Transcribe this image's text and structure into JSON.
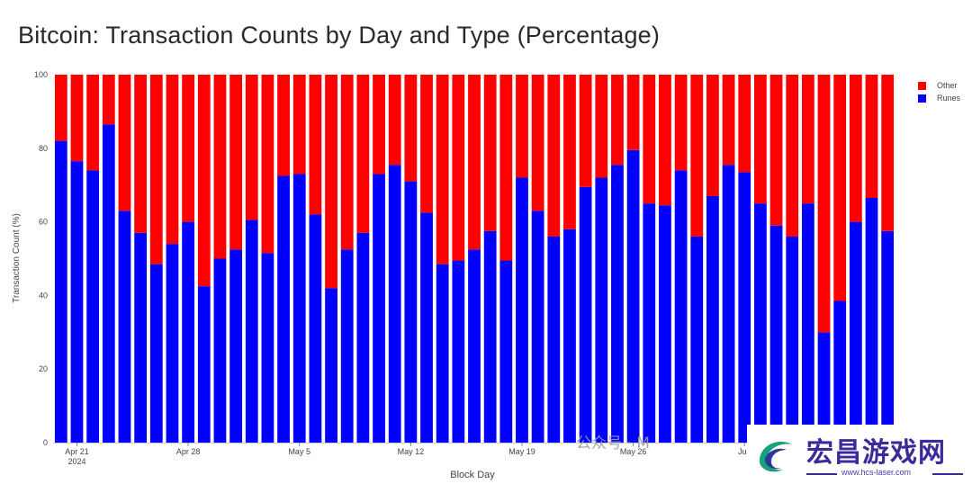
{
  "title": "Bitcoin: Transaction Counts by Day and Type (Percentage)",
  "legend": {
    "items": [
      {
        "label": "Other",
        "color": "#ff0000"
      },
      {
        "label": "Runes",
        "color": "#0000ff"
      }
    ]
  },
  "watermark": {
    "wechat_text": "公众号 · M",
    "brand_cn": "宏昌游戏网",
    "brand_url": "www.hcs-laser.com"
  },
  "chart_data": {
    "type": "bar",
    "stacked": true,
    "title": "Bitcoin: Transaction Counts by Day and Type (Percentage)",
    "xlabel": "Block Day",
    "ylabel": "Transaction Count (%)",
    "ylim": [
      0,
      100
    ],
    "yticks": [
      "0",
      "20",
      "40",
      "60",
      "80",
      "100"
    ],
    "xticks": [
      {
        "label": "Apr 21",
        "sublabel": "2024",
        "index": 1
      },
      {
        "label": "Apr 28",
        "index": 8
      },
      {
        "label": "May 5",
        "index": 15
      },
      {
        "label": "May 12",
        "index": 22
      },
      {
        "label": "May 19",
        "index": 29
      },
      {
        "label": "May 26",
        "index": 36
      },
      {
        "label": "Jun",
        "index": 43
      }
    ],
    "grid": false,
    "legend_position": "top-right",
    "series": [
      {
        "name": "Runes",
        "color": "#0000ff",
        "values": [
          82,
          76.5,
          74,
          86.5,
          63,
          57,
          48.5,
          54,
          60,
          42.5,
          50,
          52.5,
          60.5,
          51.5,
          72.5,
          73,
          62,
          42,
          52.5,
          57,
          73,
          75.5,
          71,
          62.5,
          48.5,
          49.5,
          52.5,
          57.5,
          49.5,
          72,
          63,
          56,
          58,
          69.5,
          72,
          75.5,
          79.5,
          65,
          64.5,
          74,
          56,
          67,
          75.5,
          73.5,
          65,
          59,
          56,
          65,
          30,
          38.5,
          60,
          66.5,
          57.5
        ]
      },
      {
        "name": "Other",
        "color": "#ff0000",
        "values": [
          18,
          23.5,
          26,
          13.5,
          37,
          43,
          51.5,
          46,
          40,
          57.5,
          50,
          47.5,
          39.5,
          48.5,
          27.5,
          27,
          38,
          58,
          47.5,
          43,
          27,
          24.5,
          29,
          37.5,
          51.5,
          50.5,
          47.5,
          42.5,
          50.5,
          28,
          37,
          44,
          42,
          30.5,
          28,
          24.5,
          20.5,
          35,
          35.5,
          26,
          44,
          33,
          24.5,
          26.5,
          35,
          41,
          44,
          35,
          70,
          61.5,
          40,
          33.5,
          42.5
        ]
      }
    ]
  }
}
